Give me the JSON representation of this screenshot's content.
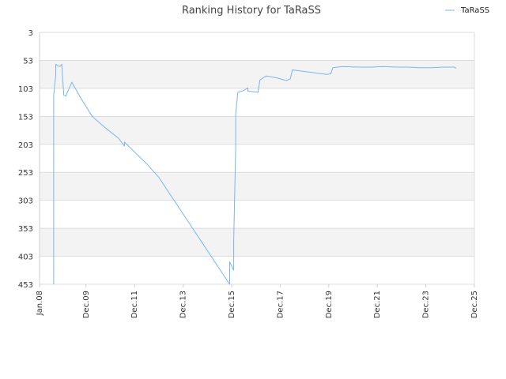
{
  "chart_data": {
    "type": "line",
    "title": "Ranking History for TaRaSS",
    "xlabel": "",
    "ylabel": "",
    "legend": {
      "placement": "top-right",
      "entries": [
        "TaRaSS"
      ]
    },
    "grid": true,
    "y_inverted": true,
    "ylim": [
      3,
      453
    ],
    "yticks": [
      3,
      53,
      103,
      153,
      203,
      253,
      303,
      353,
      403,
      453
    ],
    "xlim": [
      "2008-01",
      "2025-12"
    ],
    "xticks": [
      "Jan.08",
      "Dec.09",
      "Dec.11",
      "Dec.13",
      "Dec.15",
      "Dec.17",
      "Dec.19",
      "Dec.21",
      "Dec.23",
      "Dec.25"
    ],
    "series": [
      {
        "name": "TaRaSS",
        "color": "#7cb5ec",
        "points": [
          [
            "2008-08",
            453
          ],
          [
            "2008-08",
            115
          ],
          [
            "2008-09",
            80
          ],
          [
            "2008-09",
            60
          ],
          [
            "2008-10",
            63
          ],
          [
            "2008-11",
            64
          ],
          [
            "2008-12",
            60
          ],
          [
            "2009-01",
            115
          ],
          [
            "2009-02",
            117
          ],
          [
            "2009-03",
            108
          ],
          [
            "2009-05",
            92
          ],
          [
            "2009-09",
            118
          ],
          [
            "2010-03",
            153
          ],
          [
            "2010-09",
            172
          ],
          [
            "2011-04",
            192
          ],
          [
            "2011-07",
            206
          ],
          [
            "2011-07",
            199
          ],
          [
            "2012-06",
            238
          ],
          [
            "2012-12",
            262
          ],
          [
            "2015-11",
            453
          ],
          [
            "2015-11",
            413
          ],
          [
            "2016-01",
            428
          ],
          [
            "2016-01",
            375
          ],
          [
            "2016-02",
            210
          ],
          [
            "2016-02",
            150
          ],
          [
            "2016-03",
            110
          ],
          [
            "2016-06",
            107
          ],
          [
            "2016-08",
            102
          ],
          [
            "2016-08",
            108
          ],
          [
            "2017-01",
            110
          ],
          [
            "2017-02",
            88
          ],
          [
            "2017-05",
            81
          ],
          [
            "2017-10",
            84
          ],
          [
            "2018-03",
            89
          ],
          [
            "2018-05",
            86
          ],
          [
            "2018-06",
            70
          ],
          [
            "2019-11",
            78
          ],
          [
            "2020-01",
            77
          ],
          [
            "2020-02",
            66
          ],
          [
            "2020-07",
            64
          ],
          [
            "2021-02",
            65
          ],
          [
            "2021-09",
            65
          ],
          [
            "2022-03",
            64
          ],
          [
            "2022-09",
            65
          ],
          [
            "2023-03",
            65
          ],
          [
            "2023-09",
            66
          ],
          [
            "2024-03",
            66
          ],
          [
            "2024-09",
            65
          ],
          [
            "2025-02",
            65
          ],
          [
            "2025-03",
            67
          ]
        ]
      }
    ]
  }
}
